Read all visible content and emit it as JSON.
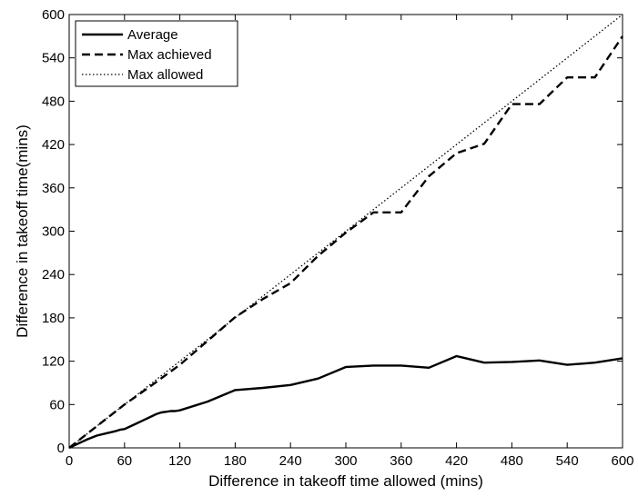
{
  "chart_data": {
    "type": "line",
    "xlabel": "Difference in takeoff time allowed (mins)",
    "ylabel": "Difference in takeoff time(mins)",
    "xlim": [
      0,
      600
    ],
    "ylim": [
      0,
      600
    ],
    "xticks": [
      0,
      60,
      120,
      180,
      240,
      300,
      360,
      420,
      480,
      540,
      600
    ],
    "yticks": [
      0,
      60,
      120,
      180,
      240,
      300,
      360,
      420,
      480,
      540,
      600
    ],
    "grid": false,
    "legend_position": "top-left",
    "series": [
      {
        "name": "Average",
        "style": "solid",
        "x": [
          0,
          10,
          20,
          30,
          40,
          50,
          55,
          60,
          70,
          80,
          90,
          95,
          100,
          105,
          110,
          115,
          120,
          150,
          180,
          210,
          240,
          270,
          300,
          330,
          360,
          390,
          420,
          450,
          480,
          510,
          540,
          570,
          600
        ],
        "y": [
          0,
          6,
          12,
          17,
          20,
          23,
          25,
          26,
          32,
          38,
          44,
          47,
          49,
          50,
          51,
          51,
          52,
          64,
          80,
          83,
          87,
          96,
          112,
          114,
          114,
          111,
          127,
          118,
          119,
          121,
          115,
          118,
          124
        ]
      },
      {
        "name": "Max achieved",
        "style": "dashed",
        "x": [
          0,
          30,
          60,
          90,
          120,
          150,
          180,
          210,
          240,
          270,
          300,
          330,
          360,
          390,
          420,
          450,
          480,
          510,
          540,
          570,
          600
        ],
        "y": [
          0,
          30,
          60,
          87,
          115,
          148,
          181,
          206,
          228,
          266,
          298,
          326,
          326,
          376,
          408,
          421,
          476,
          476,
          513,
          513,
          570
        ]
      },
      {
        "name": "Max allowed",
        "style": "dotted",
        "x": [
          0,
          600
        ],
        "y": [
          0,
          600
        ]
      }
    ]
  }
}
